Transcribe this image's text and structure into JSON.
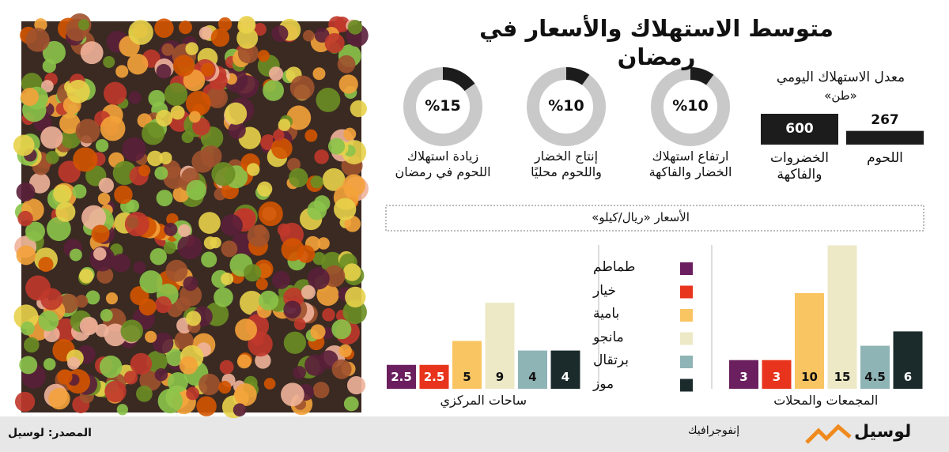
{
  "title": "متوسط الاستهلاك والأسعار في رمضان",
  "chart_data": [
    {
      "type": "bar",
      "title": "معدل الاستهلاك اليومي",
      "subtitle": "«طن»",
      "categories": [
        "اللحوم",
        "الخضروات\nوالفاكهة"
      ],
      "values": [
        267,
        600
      ],
      "color": "#1c1c1c"
    },
    {
      "type": "donut",
      "categories": [
        "ارتفاع استهلاك\nالخضار والفاكهة",
        "إنتاج الخضار\nواللحوم محليًا",
        "زيادة استهلاك\nاللحوم في رمضان"
      ],
      "values": [
        10,
        10,
        15
      ],
      "value_labels": [
        "%10",
        "%10",
        "%15"
      ],
      "color": "#1c1c1c",
      "track_color": "#c9c9c9"
    },
    {
      "type": "grouped-bar",
      "title": "الأسعار «ريال/كيلو»",
      "categories": [
        "ساحات المركزي",
        "المجمعات والمحلات"
      ],
      "series": [
        {
          "name": "طماطم",
          "color": "#6b1f5e",
          "values": [
            2.5,
            3
          ]
        },
        {
          "name": "خيار",
          "color": "#e8341c",
          "values": [
            2.5,
            3
          ]
        },
        {
          "name": "بامية",
          "color": "#f9c462",
          "values": [
            5,
            10
          ]
        },
        {
          "name": "مانجو",
          "color": "#ede9c6",
          "values": [
            9,
            15
          ]
        },
        {
          "name": "برتقال",
          "color": "#8fb4b6",
          "values": [
            4,
            4.5
          ]
        },
        {
          "name": "موز",
          "color": "#1b2b2b",
          "values": [
            4,
            6
          ]
        }
      ]
    }
  ],
  "footer": {
    "source": "المصدر: لوسيل",
    "section": "إنفوجرافيك",
    "brand": "لوسيل"
  }
}
